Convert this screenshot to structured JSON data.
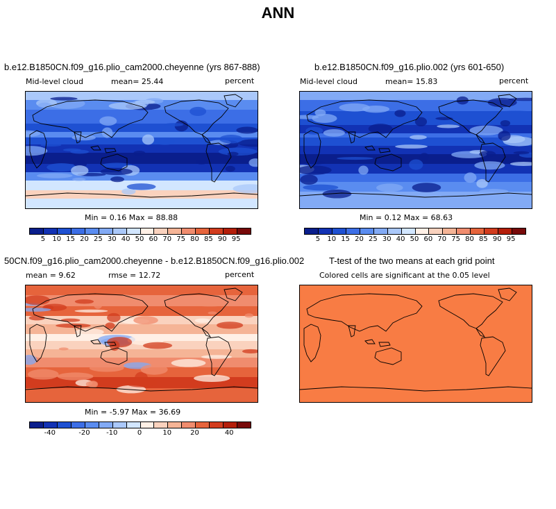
{
  "figure_title": "ANN",
  "panels": [
    {
      "title": "b.e12.B1850CN.f09_g16.plio_cam2000.cheyenne (yrs 867-888)",
      "left_label": "Mid-level cloud",
      "center_label": "mean=  25.44",
      "right_label": "percent",
      "minmax": "Min =   0.16 Max =  88.88"
    },
    {
      "title": "b.e12.B1850CN.f09_g16.plio.002 (yrs 601-650)",
      "left_label": "Mid-level cloud",
      "center_label": "mean=  15.83",
      "right_label": "percent",
      "minmax": "Min =   0.12 Max =  68.63"
    },
    {
      "title": "50CN.f09_g16.plio_cam2000.cheyenne - b.e12.B1850CN.f09_g16.plio.002",
      "left_label": "mean =   9.62",
      "center_label": "rmse =  12.72",
      "right_label": "percent",
      "minmax": "Min =  -5.97 Max =  36.69"
    },
    {
      "title": "T-test of the two means at each grid point",
      "left_label": "",
      "center_label": "Colored cells are significant at the 0.05 level",
      "right_label": "",
      "minmax": ""
    }
  ],
  "colorbars": {
    "absolute": {
      "colors": [
        "#0a1e8c",
        "#1232b4",
        "#1e50d2",
        "#3c6ee6",
        "#5a8cf0",
        "#82aaf5",
        "#aac8fa",
        "#d2e6ff",
        "#fff0e6",
        "#fad2be",
        "#f5b496",
        "#f08c6e",
        "#e6643c",
        "#d23c1e",
        "#b41e0a",
        "#780a0a"
      ],
      "labels": [
        "5",
        "10",
        "15",
        "20",
        "25",
        "30",
        "40",
        "50",
        "60",
        "70",
        "75",
        "80",
        "85",
        "90",
        "95"
      ]
    },
    "difference": {
      "colors": [
        "#0a1e8c",
        "#1232b4",
        "#1e50d2",
        "#3c6ee6",
        "#5a8cf0",
        "#82aaf5",
        "#aac8fa",
        "#d2e6ff",
        "#fff0e6",
        "#fad2be",
        "#f5b496",
        "#f08c6e",
        "#e6643c",
        "#d23c1e",
        "#b41e0a",
        "#780a0a"
      ],
      "labels": [
        "-40",
        "-20",
        "-10",
        "0",
        "10",
        "20",
        "40"
      ]
    }
  }
}
